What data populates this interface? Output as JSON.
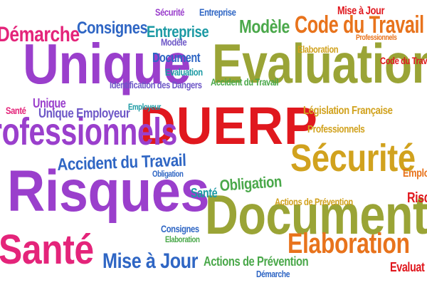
{
  "colors": {
    "red": "#e0181e",
    "pink": "#e4247a",
    "purple": "#9a3fcc",
    "violet": "#6d57c7",
    "blue": "#2f66c4",
    "teal": "#1c9aa4",
    "green": "#4aa84a",
    "olive": "#9aa436",
    "gold": "#d1a21e",
    "orange": "#e8731c"
  },
  "words": {
    "duerp": "DUERP",
    "evaluation_big": "Evaluation",
    "unique_big": "Unique",
    "risques_big": "Risques",
    "document_big": "Document",
    "professionnels_big": "Professionnels",
    "sante_big": "Santé",
    "securite_big": "Sécurité",
    "elaboration_big": "Elaboration",
    "code_travail_big": "Code du Travail",
    "accident_travail_big": "Accident du Travail",
    "demarche_big": "Démarche",
    "consignes_big": "Consignes",
    "entreprise_big": "Entreprise",
    "modele_big": "Modèle",
    "mise_a_jour_big": "Mise à Jour",
    "obligation_big": "Obligation",
    "unique_employeur": "Unique Employeur",
    "legislation_francaise": "Législation Française",
    "actions_prevention_big": "Actions de Prévention",
    "sec_risques_small": "Risques",
    "emplo_small": "Emplo",
    "evaluat_small": "Evaluat",
    "professionnels_small": "Professionnels",
    "sante_small": "Santé",
    "elaboration_small": "Elaboration",
    "document_small": "Document",
    "evaluation_small": "Evaluation",
    "identification_dangers": "Identification des Dangers",
    "accident_du_travail_small": "Accident du Travail",
    "actions_prevention_small": "Actions de Prévention",
    "securite_small": "Sécurité",
    "entreprise_small": "Entreprise",
    "modele_small": "Modèle",
    "mise_a_jour_small": "Mise à Jour",
    "demarche_small": "Démarche",
    "code_travail_small": "Code du Travail",
    "obligation_small": "Obligation",
    "sante_tiny": "Santé",
    "employeur_tiny": "Employeur",
    "consignes_small": "Consignes",
    "elaboration_tiny": "Elaboration",
    "unique_small": "Unique",
    "professionnels_tiny": "Professionnels"
  }
}
